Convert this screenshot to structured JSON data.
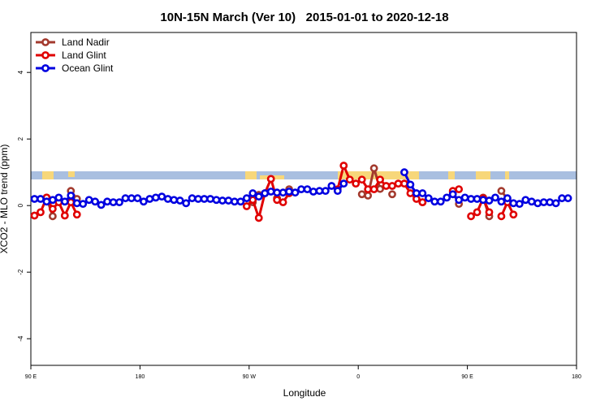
{
  "chart_data": {
    "type": "line",
    "title": "10N-15N March (Ver 10)   2015-01-01 to 2020-12-18",
    "xlabel": "Longitude",
    "ylabel": "XCO2 - MLO trend (ppm)",
    "xlim": [
      90,
      540
    ],
    "ylim": [
      -4.8,
      5.2
    ],
    "xticks": [
      {
        "value": 90,
        "label": "90 E"
      },
      180,
      {
        "value": 270,
        "label": "90 W"
      },
      {
        "value": 360,
        "label": "0"
      },
      {
        "value": 450,
        "label": "90 E"
      },
      {
        "value": 540,
        "label": "180"
      }
    ],
    "yticks": [
      -4,
      -2,
      0,
      2,
      4
    ],
    "legend": "top-left",
    "x": [
      93,
      98,
      103,
      108,
      113,
      118,
      123,
      128,
      133,
      138,
      143,
      148,
      153,
      158,
      163,
      168,
      173,
      178,
      183,
      188,
      193,
      198,
      203,
      208,
      213,
      218,
      223,
      228,
      233,
      238,
      243,
      248,
      253,
      258,
      263,
      268,
      273,
      278,
      283,
      288,
      293,
      298,
      303,
      308,
      313,
      318,
      323,
      328,
      333,
      338,
      343,
      348,
      353,
      358,
      363,
      368,
      373,
      378,
      383,
      388,
      393,
      398,
      403,
      408,
      413,
      418,
      423,
      428,
      433,
      438,
      443,
      448,
      453,
      458,
      463,
      468,
      473,
      478,
      483,
      488,
      493,
      498,
      503,
      508,
      513,
      518,
      523,
      528,
      533
    ],
    "series": [
      {
        "name": "Land Nadir",
        "color": "#a33a2e",
        "values": [
          null,
          null,
          0.24,
          -0.32,
          null,
          null,
          0.44,
          0.2,
          null,
          null,
          null,
          null,
          null,
          null,
          null,
          null,
          null,
          null,
          null,
          null,
          null,
          null,
          null,
          null,
          null,
          null,
          null,
          null,
          null,
          null,
          null,
          null,
          null,
          null,
          null,
          null,
          0.1,
          0.32,
          null,
          null,
          0.22,
          null,
          0.49,
          null,
          null,
          null,
          null,
          null,
          null,
          null,
          null,
          null,
          null,
          null,
          0.34,
          0.3,
          1.12,
          0.5,
          null,
          0.34,
          null,
          null,
          null,
          null,
          0.1,
          null,
          null,
          null,
          null,
          0.4,
          0.05,
          null,
          null,
          null,
          0.24,
          -0.32,
          null,
          0.44,
          0.2,
          null,
          null,
          null,
          null,
          null,
          null,
          null,
          null,
          null,
          null
        ]
      },
      {
        "name": "Land Glint",
        "color": "#e00000",
        "values": [
          -0.3,
          -0.2,
          0.24,
          -0.1,
          0.1,
          -0.3,
          0.1,
          -0.27,
          null,
          null,
          null,
          null,
          null,
          null,
          null,
          null,
          null,
          null,
          null,
          null,
          null,
          null,
          null,
          null,
          null,
          null,
          null,
          null,
          null,
          null,
          null,
          null,
          null,
          null,
          null,
          -0.02,
          0.17,
          -0.37,
          0.37,
          0.8,
          0.17,
          0.1,
          0.37,
          null,
          null,
          null,
          null,
          null,
          null,
          null,
          0.49,
          1.2,
          0.78,
          0.66,
          0.78,
          0.49,
          0.49,
          0.78,
          0.59,
          0.59,
          0.66,
          0.66,
          0.37,
          0.2,
          0.1,
          null,
          null,
          null,
          null,
          0.44,
          0.49,
          null,
          -0.32,
          -0.2,
          0.22,
          -0.2,
          null,
          -0.32,
          0.1,
          -0.27,
          null,
          null,
          null,
          null,
          null,
          null,
          null,
          null,
          null
        ]
      },
      {
        "name": "Ocean Glint",
        "color": "#0000e0",
        "values": [
          0.2,
          0.2,
          0.12,
          0.17,
          0.24,
          0.12,
          0.3,
          0.07,
          0.05,
          0.17,
          0.12,
          0.02,
          0.12,
          0.1,
          0.1,
          0.22,
          0.22,
          0.22,
          0.12,
          0.2,
          0.24,
          0.27,
          0.2,
          0.17,
          0.15,
          0.07,
          0.22,
          0.2,
          0.2,
          0.2,
          0.17,
          0.15,
          0.15,
          0.12,
          0.12,
          0.22,
          0.37,
          0.27,
          0.37,
          0.42,
          0.39,
          0.39,
          0.42,
          0.39,
          0.49,
          0.49,
          0.42,
          0.44,
          0.44,
          0.59,
          0.44,
          0.66,
          null,
          null,
          null,
          null,
          null,
          null,
          null,
          null,
          null,
          1.0,
          0.63,
          0.37,
          0.37,
          0.22,
          0.12,
          0.12,
          0.24,
          0.34,
          0.17,
          0.24,
          0.2,
          0.2,
          0.17,
          0.15,
          0.24,
          0.12,
          0.22,
          0.07,
          0.05,
          0.17,
          0.12,
          0.07,
          0.1,
          0.1,
          0.07,
          0.22,
          0.22
        ]
      }
    ]
  }
}
